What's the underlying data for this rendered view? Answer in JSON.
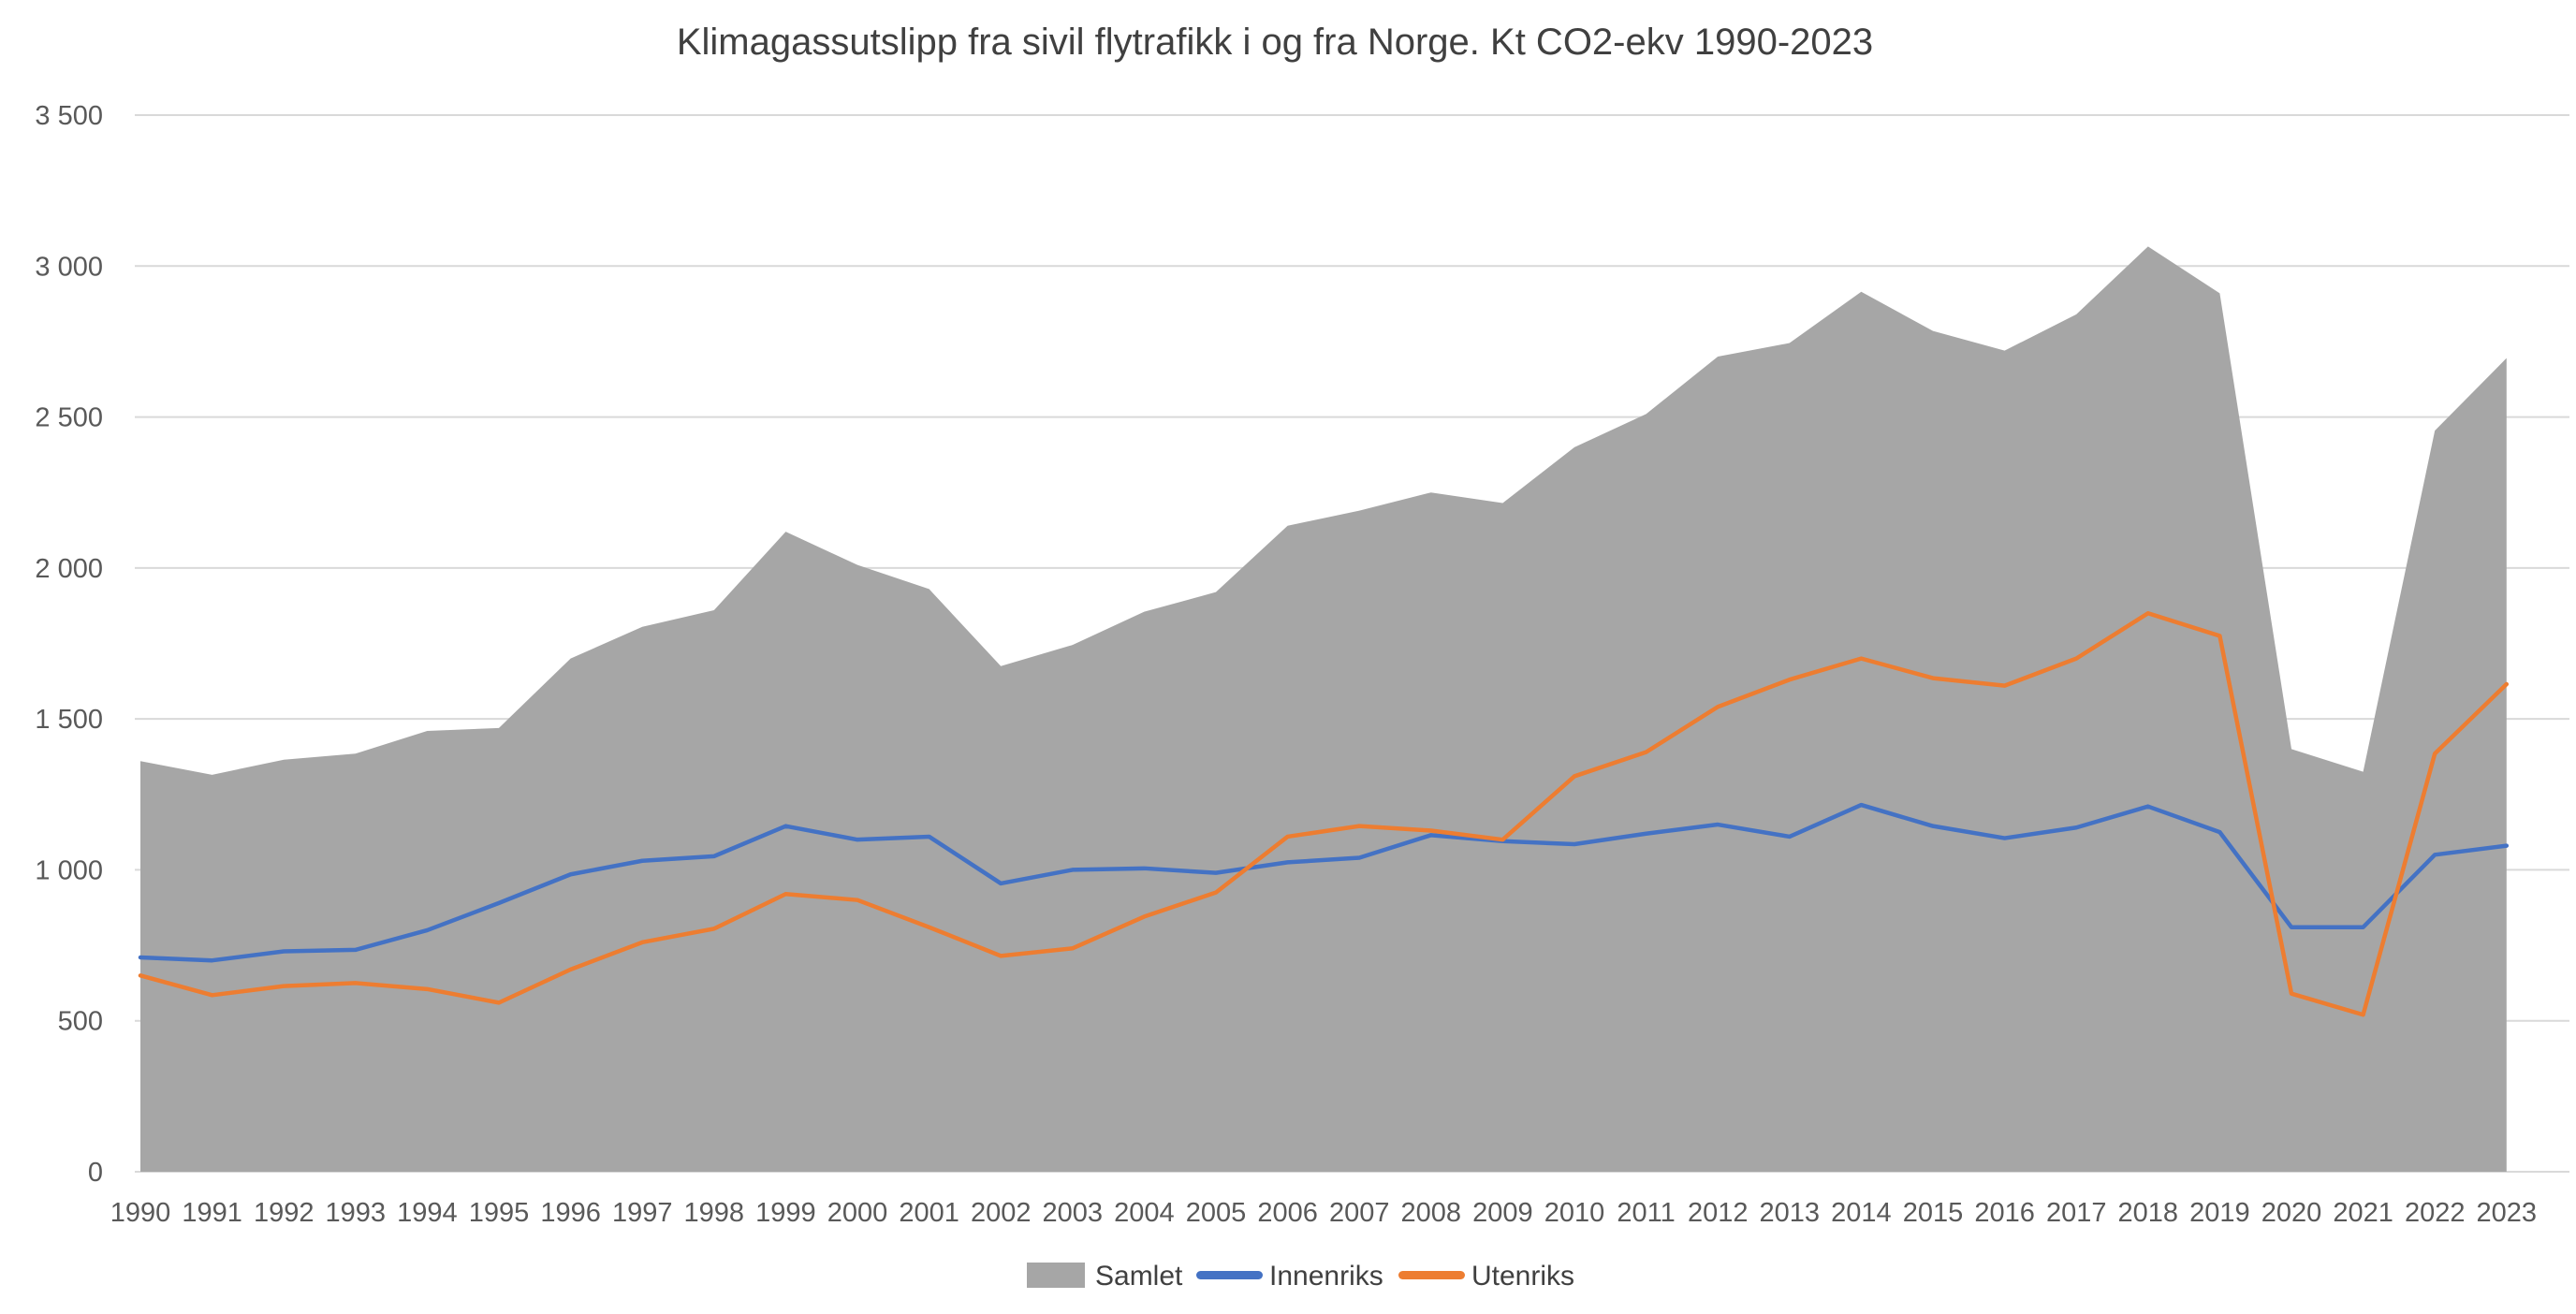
{
  "title": "Klimagassutslipp fra sivil flytrafikk i og fra Norge. Kt CO2-ekv 1990-2023",
  "colors": {
    "samlet_area": "#A6A6A6",
    "innenriks_line": "#4472C4",
    "utenriks_line": "#ED7D31",
    "gridline": "#D9D9D9",
    "axis_text": "#595959",
    "title_text": "#404040",
    "background": "#FFFFFF"
  },
  "chart_data": {
    "type": "area",
    "title": "Klimagassutslipp fra sivil flytrafikk i og fra Norge. Kt CO2-ekv 1990-2023",
    "xlabel": "",
    "ylabel": "",
    "ylim": [
      0,
      3500
    ],
    "ytick_step": 500,
    "ytick_labels": [
      "0",
      "500",
      "1 000",
      "1 500",
      "2 000",
      "2 500",
      "3 000",
      "3 500"
    ],
    "grid": "horizontal",
    "legend_position": "bottom",
    "x": [
      1990,
      1991,
      1992,
      1993,
      1994,
      1995,
      1996,
      1997,
      1998,
      1999,
      2000,
      2001,
      2002,
      2003,
      2004,
      2005,
      2006,
      2007,
      2008,
      2009,
      2010,
      2011,
      2012,
      2013,
      2014,
      2015,
      2016,
      2017,
      2018,
      2019,
      2020,
      2021,
      2022,
      2023
    ],
    "series": [
      {
        "name": "Samlet",
        "type": "area",
        "color": "#A6A6A6",
        "values": [
          1360,
          1315,
          1365,
          1385,
          1460,
          1470,
          1700,
          1805,
          1860,
          2120,
          2010,
          1930,
          1675,
          1745,
          1855,
          1920,
          2140,
          2190,
          2250,
          2215,
          2400,
          2510,
          2700,
          2745,
          2915,
          2785,
          2720,
          2840,
          3065,
          2910,
          1400,
          1325,
          2455,
          2695
        ]
      },
      {
        "name": "Innenriks",
        "type": "line",
        "color": "#4472C4",
        "values": [
          710,
          700,
          730,
          735,
          800,
          890,
          985,
          1030,
          1045,
          1145,
          1100,
          1110,
          955,
          1000,
          1005,
          990,
          1025,
          1040,
          1115,
          1095,
          1085,
          1120,
          1150,
          1110,
          1215,
          1145,
          1105,
          1140,
          1210,
          1125,
          810,
          810,
          1050,
          1080
        ]
      },
      {
        "name": "Utenriks",
        "type": "line",
        "color": "#ED7D31",
        "values": [
          650,
          585,
          615,
          625,
          605,
          560,
          670,
          760,
          805,
          920,
          900,
          810,
          715,
          740,
          845,
          925,
          1110,
          1145,
          1130,
          1100,
          1310,
          1390,
          1540,
          1630,
          1700,
          1635,
          1610,
          1700,
          1850,
          1775,
          590,
          520,
          1385,
          1615
        ]
      }
    ]
  }
}
